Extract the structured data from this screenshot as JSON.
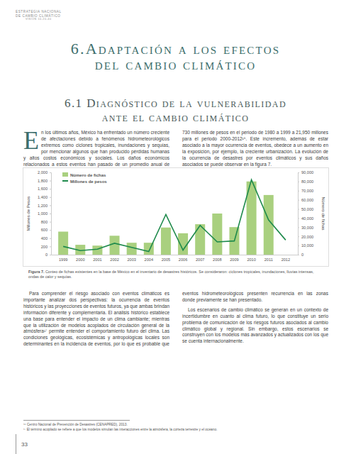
{
  "header": [
    "ESTRATEGIA NACIONAL",
    "DE CAMBIO CLIMÁTICO",
    "VISIÓN 10-20-40"
  ],
  "title": [
    "6.Adaptación a los efectos",
    "del cambio climático"
  ],
  "section_title": [
    "6.1 Diagnóstico de la vulnerabilidad",
    "ante el cambio climático"
  ],
  "body_top": [
    "En los últimos años, México ha enfrentado un número creciente de afectaciones debido a fenómenos hidrometeorológicos extremos como ciclones tropicales, inundaciones y sequías, por mencionar algunos que han producido pérdidas humanas y altos costos económicos y sociales. Los daños económicos relacionados a estos eventos han pasado de un promedio anual de 730 millones de pesos en el periodo de 1980 a 1999 a 21,950 millones para el periodo 2000-2012¹⁶. Este incremento, además de estar asociado a la mayor ocurrencia de eventos, obedece a un aumento en la exposición, por ejemplo, la creciente urbanización. La evolución de la ocurrencia de desastres por eventos climáticos y sus daños asociados se puede observar en la figura 7."
  ],
  "chart_data": {
    "type": "bar",
    "y_label": "Millones de Pesos",
    "y2_label": "Número de fichas",
    "categories": [
      "1999",
      "2000",
      "2001",
      "2002",
      "2003",
      "2004",
      "2005",
      "2006",
      "2007",
      "2008",
      "2009",
      "2010",
      "2011",
      "2012"
    ],
    "series": [
      {
        "name": "Número de fichas",
        "type": "bar",
        "color": "#a9d07f",
        "values": [
          560,
          240,
          220,
          460,
          290,
          290,
          660,
          520,
          740,
          1000,
          670,
          1780,
          1450,
          null
        ]
      },
      {
        "name": "Millones de pesos",
        "type": "line",
        "axis": "y2",
        "color": "#1e8a4c",
        "values": [
          9000,
          4500,
          6000,
          12500,
          8000,
          3500,
          44000,
          5000,
          32000,
          14000,
          15000,
          82000,
          38000,
          16000
        ]
      }
    ],
    "ylim": [
      0,
      2000
    ],
    "yticks": [
      0,
      200,
      400,
      600,
      800,
      {
        "value": 1000,
        "label": "1,000"
      },
      {
        "value": 1200,
        "label": "1,200"
      },
      {
        "value": 1400,
        "label": "1,400"
      },
      {
        "value": 1600,
        "label": "1,600"
      },
      {
        "value": 1800,
        "label": "1,800"
      },
      {
        "value": 2000,
        "label": "2,000"
      }
    ],
    "y2lim": [
      0,
      90000
    ],
    "y2ticks": [
      0,
      {
        "value": 10000,
        "label": "10,000"
      },
      {
        "value": 20000,
        "label": "20,000"
      },
      {
        "value": 30000,
        "label": "30,000"
      },
      {
        "value": 40000,
        "label": "40,000"
      },
      {
        "value": 50000,
        "label": "50,000"
      },
      {
        "value": 60000,
        "label": "60,000"
      },
      {
        "value": 70000,
        "label": "70,000"
      },
      {
        "value": 80000,
        "label": "80,000"
      },
      {
        "value": 90000,
        "label": "90,000"
      }
    ],
    "legend": "top-left"
  },
  "caption": {
    "label": "Figura 7.",
    "text": "Conteo de fichas existentes en la base de México en el inventario de desastres históricos. Se consideraron: ciclones tropicales, inundaciones, lluvias intensas, ondas de calor y sequías."
  },
  "body_bottom": [
    "Para comprender el riesgo asociado con eventos climáticos es importante analizar dos perspectivas: la ocurrencia de eventos históricos y las proyecciones de eventos futuros, ya que ambas brindan información diferente y complementaria. El análisis histórico establece una base para entender el impacto de un clima cambiante; mientras que la utilización de modelos acoplados de circulación general de la atmósfera¹⁷ permite entender el comportamiento futuro del clima. Las condiciones geológicas, ecosistémicas y antropológicas locales son determinantes en la incidencia de eventos, por lo que es probable que eventos hidrometeorológicos presenten recurrencia en las zonas donde previamente se han presentado.",
    "Los escenarios de cambio climático se generan en un contexto de incertidumbre en cuanto al clima futuro, lo que constituye un serio problema de comunicación de los riesgos futuros asociados al cambio climático global y regional. Sin embargo, estos escenarios se construyen con los modelos más avanzados y actualizados con los que se cuenta internacionalmente."
  ],
  "footnotes": [
    "¹⁶ Centro Nacional de Prevención de Desastres (CENAPRED), 2013.",
    "¹⁷ El término acoplado se refiere a que los modelos simulan las interacciones entre la atmósfera, la corteza terrestre y el océano."
  ],
  "page_number": "33"
}
